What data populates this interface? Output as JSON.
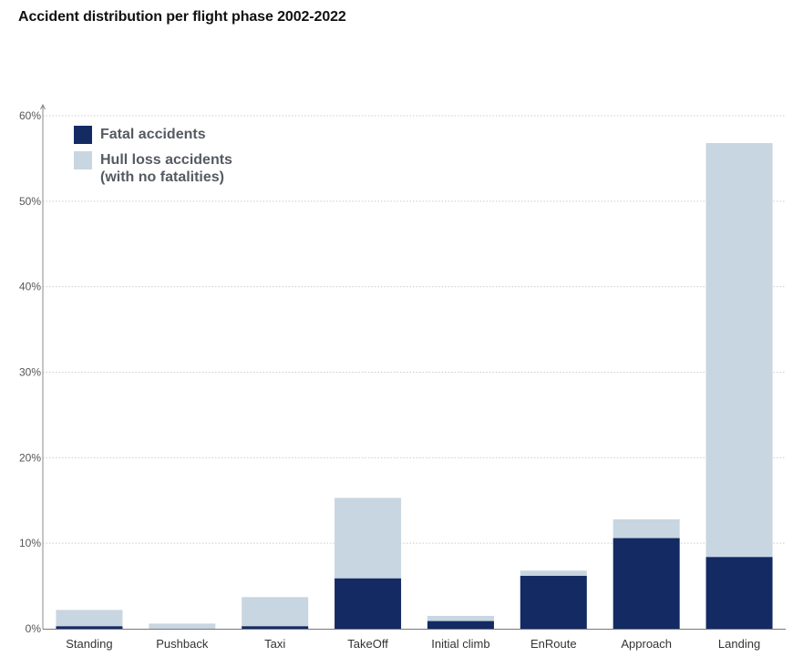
{
  "title": "Accident distribution per flight phase 2002-2022",
  "colors": {
    "fatal": "#132a63",
    "hull_loss": "#c8d6e1",
    "grid": "#cccccc",
    "axis": "#888888"
  },
  "legend": {
    "fatal_label": "Fatal accidents",
    "hull_label_line1": "Hull loss accidents",
    "hull_label_line2": "(with no fatalities)"
  },
  "chart_data": {
    "type": "bar",
    "stacked": true,
    "title": "Accident distribution per flight phase 2002-2022",
    "xlabel": "",
    "ylabel": "",
    "ylim": [
      0,
      60
    ],
    "yticks": [
      0,
      10,
      20,
      30,
      40,
      50,
      60
    ],
    "ytick_labels": [
      "0%",
      "10%",
      "20%",
      "30%",
      "40%",
      "50%",
      "60%"
    ],
    "grid": true,
    "legend_position": "top-left",
    "categories": [
      "Standing",
      "Pushback",
      "Taxi",
      "TakeOff",
      "Initial climb",
      "EnRoute",
      "Approach",
      "Landing"
    ],
    "series": [
      {
        "name": "Fatal accidents",
        "color": "#132a63",
        "values": [
          0.3,
          0.0,
          0.3,
          5.9,
          0.9,
          6.2,
          10.6,
          8.4
        ]
      },
      {
        "name": "Hull loss accidents (with no fatalities)",
        "color": "#c8d6e1",
        "values": [
          1.9,
          0.6,
          3.4,
          9.4,
          0.6,
          0.6,
          2.2,
          48.4
        ]
      }
    ]
  }
}
